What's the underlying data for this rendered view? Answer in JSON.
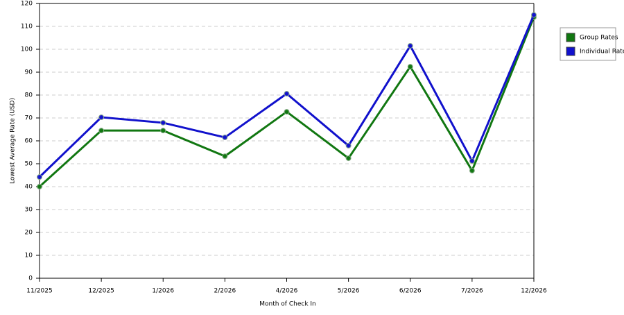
{
  "chart_data": {
    "type": "line",
    "x_label": "Month of Check In",
    "y_label": "Lowest Average Rate (USD)",
    "categories": [
      "11/2025",
      "12/2025",
      "1/2026",
      "2/2026",
      "4/2026",
      "5/2026",
      "6/2026",
      "7/2026",
      "12/2026"
    ],
    "series": [
      {
        "name": "Group Rates",
        "color": "#117711",
        "values": [
          40,
          64.5,
          64.5,
          53.3,
          72.7,
          52.4,
          92.4,
          47,
          114
        ]
      },
      {
        "name": "Individual Rates",
        "color": "#1111cc",
        "values": [
          44.2,
          70.3,
          67.9,
          61.5,
          80.6,
          57.9,
          101.5,
          51.2,
          115
        ]
      }
    ],
    "ylim": [
      0,
      120
    ],
    "yticks": [
      0,
      10,
      20,
      30,
      40,
      50,
      60,
      70,
      80,
      90,
      100,
      110,
      120
    ],
    "grid": true
  }
}
